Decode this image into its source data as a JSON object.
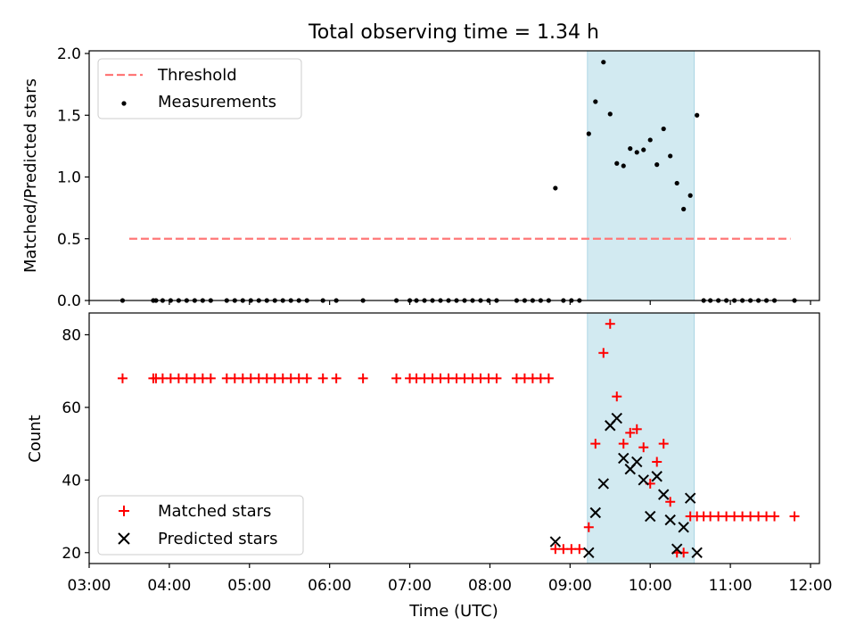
{
  "chart_data": [
    {
      "type": "scatter",
      "title": "Total observing time = 1.34 h",
      "ylabel": "Matched/Predicted stars",
      "xlim": [
        "03:00",
        "12:00"
      ],
      "ylim": [
        0,
        2.0
      ],
      "yticks": [
        "0.0",
        "0.5",
        "1.0",
        "1.5",
        "2.0"
      ],
      "highlight_span": {
        "from": "09:13",
        "to": "10:33",
        "color": "#add8e6"
      },
      "threshold": {
        "name": "Threshold",
        "value": 0.5,
        "from": "03:30",
        "to": "11:45",
        "color": "#ff7777"
      },
      "legend": {
        "location": "upper-left",
        "entries": [
          "Threshold",
          "Measurements"
        ]
      },
      "series": [
        {
          "name": "Measurements",
          "marker": "dot",
          "color": "#000000",
          "points": [
            [
              "03:25",
              0
            ],
            [
              "03:48",
              0
            ],
            [
              "03:50",
              0
            ],
            [
              "03:55",
              0
            ],
            [
              "04:01",
              0
            ],
            [
              "04:07",
              0
            ],
            [
              "04:13",
              0
            ],
            [
              "04:19",
              0
            ],
            [
              "04:25",
              0
            ],
            [
              "04:31",
              0
            ],
            [
              "04:43",
              0
            ],
            [
              "04:49",
              0
            ],
            [
              "04:55",
              0
            ],
            [
              "05:01",
              0
            ],
            [
              "05:07",
              0
            ],
            [
              "05:13",
              0
            ],
            [
              "05:19",
              0
            ],
            [
              "05:25",
              0
            ],
            [
              "05:31",
              0
            ],
            [
              "05:37",
              0
            ],
            [
              "05:43",
              0
            ],
            [
              "05:55",
              0
            ],
            [
              "06:05",
              0
            ],
            [
              "06:25",
              0
            ],
            [
              "06:50",
              0
            ],
            [
              "07:00",
              0
            ],
            [
              "07:05",
              0
            ],
            [
              "07:11",
              0
            ],
            [
              "07:17",
              0
            ],
            [
              "07:23",
              0
            ],
            [
              "07:29",
              0
            ],
            [
              "07:35",
              0
            ],
            [
              "07:41",
              0
            ],
            [
              "07:47",
              0
            ],
            [
              "07:53",
              0
            ],
            [
              "07:59",
              0
            ],
            [
              "08:05",
              0
            ],
            [
              "08:20",
              0
            ],
            [
              "08:26",
              0
            ],
            [
              "08:32",
              0
            ],
            [
              "08:38",
              0
            ],
            [
              "08:44",
              0
            ],
            [
              "08:49",
              0.91
            ],
            [
              "08:55",
              0
            ],
            [
              "09:01",
              0
            ],
            [
              "09:07",
              0
            ],
            [
              "09:14",
              1.35
            ],
            [
              "09:19",
              1.61
            ],
            [
              "09:25",
              1.93
            ],
            [
              "09:30",
              1.51
            ],
            [
              "09:35",
              1.11
            ],
            [
              "09:40",
              1.09
            ],
            [
              "09:45",
              1.23
            ],
            [
              "09:50",
              1.2
            ],
            [
              "09:55",
              1.22
            ],
            [
              "10:00",
              1.3
            ],
            [
              "10:05",
              1.1
            ],
            [
              "10:10",
              1.39
            ],
            [
              "10:15",
              1.17
            ],
            [
              "10:20",
              0.95
            ],
            [
              "10:25",
              0.74
            ],
            [
              "10:30",
              0.85
            ],
            [
              "10:35",
              1.5
            ],
            [
              "10:40",
              0
            ],
            [
              "10:45",
              0
            ],
            [
              "10:51",
              0
            ],
            [
              "10:57",
              0
            ],
            [
              "11:03",
              0
            ],
            [
              "11:09",
              0
            ],
            [
              "11:15",
              0
            ],
            [
              "11:21",
              0
            ],
            [
              "11:27",
              0
            ],
            [
              "11:33",
              0
            ],
            [
              "11:48",
              0
            ]
          ]
        }
      ]
    },
    {
      "type": "scatter",
      "ylabel": "Count",
      "xlabel": "Time (UTC)",
      "xticks": [
        "03:00",
        "04:00",
        "05:00",
        "06:00",
        "07:00",
        "08:00",
        "09:00",
        "10:00",
        "11:00",
        "12:00"
      ],
      "xlim": [
        "03:00",
        "12:00"
      ],
      "ylim": [
        17,
        86
      ],
      "yticks": [
        "20",
        "40",
        "60",
        "80"
      ],
      "highlight_span": {
        "from": "09:13",
        "to": "10:33",
        "color": "#add8e6"
      },
      "legend": {
        "location": "lower-left",
        "entries": [
          "Matched stars",
          "Predicted stars"
        ]
      },
      "series": [
        {
          "name": "Matched stars",
          "marker": "plus",
          "color": "#ff0000",
          "points": [
            [
              "03:25",
              68
            ],
            [
              "03:48",
              68
            ],
            [
              "03:50",
              68
            ],
            [
              "03:55",
              68
            ],
            [
              "04:01",
              68
            ],
            [
              "04:07",
              68
            ],
            [
              "04:13",
              68
            ],
            [
              "04:19",
              68
            ],
            [
              "04:25",
              68
            ],
            [
              "04:31",
              68
            ],
            [
              "04:43",
              68
            ],
            [
              "04:49",
              68
            ],
            [
              "04:55",
              68
            ],
            [
              "05:01",
              68
            ],
            [
              "05:07",
              68
            ],
            [
              "05:13",
              68
            ],
            [
              "05:19",
              68
            ],
            [
              "05:25",
              68
            ],
            [
              "05:31",
              68
            ],
            [
              "05:37",
              68
            ],
            [
              "05:43",
              68
            ],
            [
              "05:55",
              68
            ],
            [
              "06:05",
              68
            ],
            [
              "06:25",
              68
            ],
            [
              "06:50",
              68
            ],
            [
              "07:00",
              68
            ],
            [
              "07:05",
              68
            ],
            [
              "07:11",
              68
            ],
            [
              "07:17",
              68
            ],
            [
              "07:23",
              68
            ],
            [
              "07:29",
              68
            ],
            [
              "07:35",
              68
            ],
            [
              "07:41",
              68
            ],
            [
              "07:47",
              68
            ],
            [
              "07:53",
              68
            ],
            [
              "07:59",
              68
            ],
            [
              "08:05",
              68
            ],
            [
              "08:20",
              68
            ],
            [
              "08:26",
              68
            ],
            [
              "08:32",
              68
            ],
            [
              "08:38",
              68
            ],
            [
              "08:44",
              68
            ],
            [
              "08:49",
              21
            ],
            [
              "08:55",
              21
            ],
            [
              "09:01",
              21
            ],
            [
              "09:07",
              21
            ],
            [
              "09:14",
              27
            ],
            [
              "09:19",
              50
            ],
            [
              "09:25",
              75
            ],
            [
              "09:30",
              83
            ],
            [
              "09:35",
              63
            ],
            [
              "09:40",
              50
            ],
            [
              "09:45",
              53
            ],
            [
              "09:50",
              54
            ],
            [
              "09:55",
              49
            ],
            [
              "10:00",
              39
            ],
            [
              "10:05",
              45
            ],
            [
              "10:10",
              50
            ],
            [
              "10:15",
              34
            ],
            [
              "10:20",
              20
            ],
            [
              "10:25",
              20
            ],
            [
              "10:30",
              30
            ],
            [
              "10:35",
              30
            ],
            [
              "10:40",
              30
            ],
            [
              "10:45",
              30
            ],
            [
              "10:51",
              30
            ],
            [
              "10:57",
              30
            ],
            [
              "11:03",
              30
            ],
            [
              "11:09",
              30
            ],
            [
              "11:15",
              30
            ],
            [
              "11:21",
              30
            ],
            [
              "11:27",
              30
            ],
            [
              "11:33",
              30
            ],
            [
              "11:48",
              30
            ]
          ]
        },
        {
          "name": "Predicted stars",
          "marker": "x",
          "color": "#000000",
          "points": [
            [
              "08:49",
              23
            ],
            [
              "09:14",
              20
            ],
            [
              "09:19",
              31
            ],
            [
              "09:25",
              39
            ],
            [
              "09:30",
              55
            ],
            [
              "09:35",
              57
            ],
            [
              "09:40",
              46
            ],
            [
              "09:45",
              43
            ],
            [
              "09:50",
              45
            ],
            [
              "09:55",
              40
            ],
            [
              "10:00",
              30
            ],
            [
              "10:05",
              41
            ],
            [
              "10:10",
              36
            ],
            [
              "10:15",
              29
            ],
            [
              "10:20",
              21
            ],
            [
              "10:25",
              27
            ],
            [
              "10:30",
              35
            ],
            [
              "10:35",
              20
            ]
          ]
        }
      ]
    }
  ]
}
